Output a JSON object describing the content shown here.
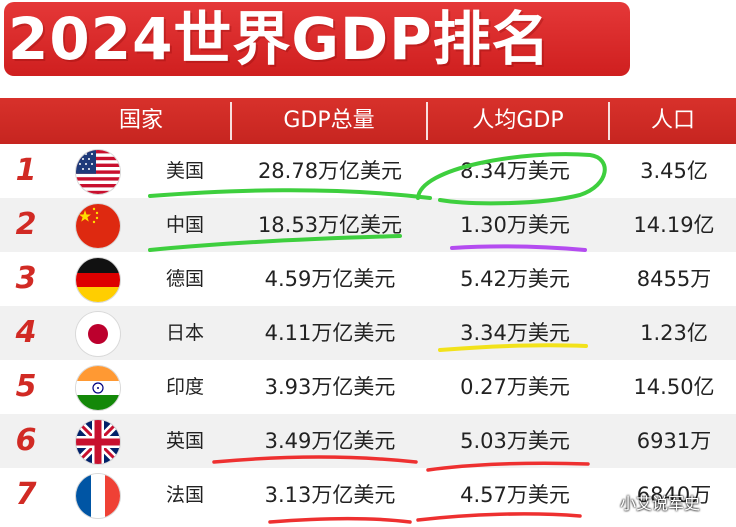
{
  "title": "2024世界GDP排名",
  "headers": {
    "country": "国家",
    "gdp": "GDP总量",
    "per_capita": "人均GDP",
    "population": "人口"
  },
  "rows": [
    {
      "rank": "1",
      "country": "美国",
      "gdp": "28.78万亿美元",
      "per_capita": "8.34万美元",
      "population": "3.45亿",
      "flag": "usa-flag-icon"
    },
    {
      "rank": "2",
      "country": "中国",
      "gdp": "18.53万亿美元",
      "per_capita": "1.30万美元",
      "population": "14.19亿",
      "flag": "china-flag-icon"
    },
    {
      "rank": "3",
      "country": "德国",
      "gdp": "4.59万亿美元",
      "per_capita": "5.42万美元",
      "population": "8455万",
      "flag": "germany-flag-icon"
    },
    {
      "rank": "4",
      "country": "日本",
      "gdp": "4.11万亿美元",
      "per_capita": "3.34万美元",
      "population": "1.23亿",
      "flag": "japan-flag-icon"
    },
    {
      "rank": "5",
      "country": "印度",
      "gdp": "3.93万亿美元",
      "per_capita": "0.27万美元",
      "population": "14.50亿",
      "flag": "india-flag-icon"
    },
    {
      "rank": "6",
      "country": "英国",
      "gdp": "3.49万亿美元",
      "per_capita": "5.03万美元",
      "population": "6931万",
      "flag": "uk-flag-icon"
    },
    {
      "rank": "7",
      "country": "法国",
      "gdp": "3.13万亿美元",
      "per_capita": "4.57万美元",
      "population": "6840万",
      "flag": "france-flag-icon"
    }
  ],
  "watermark": "小艾说军史",
  "colors": {
    "accent": "#d12a24",
    "highlight_green": "#3ecf3e",
    "highlight_purple": "#b44cf0",
    "highlight_yellow": "#f2e21a",
    "highlight_red": "#ee3030"
  }
}
